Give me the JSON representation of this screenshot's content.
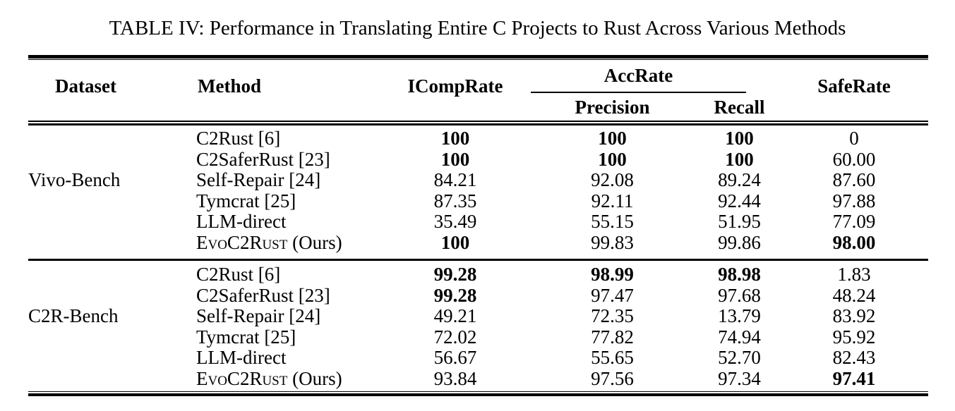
{
  "caption": "TABLE IV: Performance in Translating Entire C Projects to Rust Across Various Methods",
  "colors": {
    "text": "#000000",
    "background": "#ffffff"
  },
  "header": {
    "dataset": "Dataset",
    "method": "Method",
    "icomprate": "ICompRate",
    "accrate_group": "AccRate",
    "precision": "Precision",
    "recall": "Recall",
    "saferate": "SafeRate"
  },
  "groups": [
    {
      "dataset": "Vivo-Bench",
      "rows": [
        {
          "method": [
            {
              "text": "C2Rust [6]",
              "sc": false
            }
          ],
          "values": [
            {
              "text": "100",
              "bold": true
            },
            {
              "text": "100",
              "bold": true
            },
            {
              "text": "100",
              "bold": true
            },
            {
              "text": "0",
              "bold": false
            }
          ]
        },
        {
          "method": [
            {
              "text": "C2SaferRust [23]",
              "sc": false
            }
          ],
          "values": [
            {
              "text": "100",
              "bold": true
            },
            {
              "text": "100",
              "bold": true
            },
            {
              "text": "100",
              "bold": true
            },
            {
              "text": "60.00",
              "bold": false
            }
          ]
        },
        {
          "method": [
            {
              "text": "Self-Repair [24]",
              "sc": false
            }
          ],
          "values": [
            {
              "text": "84.21",
              "bold": false
            },
            {
              "text": "92.08",
              "bold": false
            },
            {
              "text": "89.24",
              "bold": false
            },
            {
              "text": "87.60",
              "bold": false
            }
          ]
        },
        {
          "method": [
            {
              "text": "Tymcrat [25]",
              "sc": false
            }
          ],
          "values": [
            {
              "text": "87.35",
              "bold": false
            },
            {
              "text": "92.11",
              "bold": false
            },
            {
              "text": "92.44",
              "bold": false
            },
            {
              "text": "97.88",
              "bold": false
            }
          ]
        },
        {
          "method": [
            {
              "text": "LLM-direct",
              "sc": false
            }
          ],
          "values": [
            {
              "text": "35.49",
              "bold": false
            },
            {
              "text": "55.15",
              "bold": false
            },
            {
              "text": "51.95",
              "bold": false
            },
            {
              "text": "77.09",
              "bold": false
            }
          ]
        },
        {
          "method": [
            {
              "text": "EvoC2Rust",
              "sc": true
            },
            {
              "text": " (Ours)",
              "sc": false
            }
          ],
          "values": [
            {
              "text": "100",
              "bold": true
            },
            {
              "text": "99.83",
              "bold": false
            },
            {
              "text": "99.86",
              "bold": false
            },
            {
              "text": "98.00",
              "bold": true
            }
          ]
        }
      ]
    },
    {
      "dataset": "C2R-Bench",
      "rows": [
        {
          "method": [
            {
              "text": "C2Rust [6]",
              "sc": false
            }
          ],
          "values": [
            {
              "text": "99.28",
              "bold": true
            },
            {
              "text": "98.99",
              "bold": true
            },
            {
              "text": "98.98",
              "bold": true
            },
            {
              "text": "1.83",
              "bold": false
            }
          ]
        },
        {
          "method": [
            {
              "text": "C2SaferRust [23]",
              "sc": false
            }
          ],
          "values": [
            {
              "text": "99.28",
              "bold": true
            },
            {
              "text": "97.47",
              "bold": false
            },
            {
              "text": "97.68",
              "bold": false
            },
            {
              "text": "48.24",
              "bold": false
            }
          ]
        },
        {
          "method": [
            {
              "text": "Self-Repair [24]",
              "sc": false
            }
          ],
          "values": [
            {
              "text": "49.21",
              "bold": false
            },
            {
              "text": "72.35",
              "bold": false
            },
            {
              "text": "13.79",
              "bold": false
            },
            {
              "text": "83.92",
              "bold": false
            }
          ]
        },
        {
          "method": [
            {
              "text": "Tymcrat [25]",
              "sc": false
            }
          ],
          "values": [
            {
              "text": "72.02",
              "bold": false
            },
            {
              "text": "77.82",
              "bold": false
            },
            {
              "text": "74.94",
              "bold": false
            },
            {
              "text": "95.92",
              "bold": false
            }
          ]
        },
        {
          "method": [
            {
              "text": "LLM-direct",
              "sc": false
            }
          ],
          "values": [
            {
              "text": "56.67",
              "bold": false
            },
            {
              "text": "55.65",
              "bold": false
            },
            {
              "text": "52.70",
              "bold": false
            },
            {
              "text": "82.43",
              "bold": false
            }
          ]
        },
        {
          "method": [
            {
              "text": "EvoC2Rust",
              "sc": true
            },
            {
              "text": " (Ours)",
              "sc": false
            }
          ],
          "values": [
            {
              "text": "93.84",
              "bold": false
            },
            {
              "text": "97.56",
              "bold": false
            },
            {
              "text": "97.34",
              "bold": false
            },
            {
              "text": "97.41",
              "bold": true
            }
          ]
        }
      ]
    }
  ],
  "value_column_keys": [
    "icomprate",
    "precision",
    "recall",
    "saferate"
  ],
  "dataset_label_row_index": 2
}
